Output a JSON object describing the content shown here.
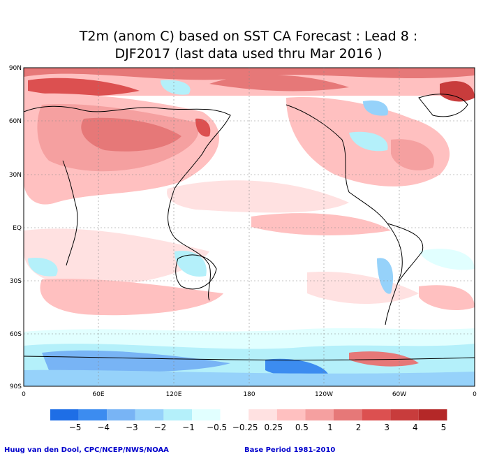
{
  "title_line1": "T2m (anom C) based on SST CA Forecast : Lead 8 :",
  "title_line2": "DJF2017 (last data used thru Mar 2016 )",
  "lat_labels": [
    "90N",
    "60N",
    "30N",
    "EQ",
    "30S",
    "60S",
    "90S"
  ],
  "lon_labels": [
    "0",
    "60E",
    "120E",
    "180",
    "120W",
    "60W",
    "0"
  ],
  "colorbar": {
    "colors": [
      "#1e6ee6",
      "#3c8cf0",
      "#78b4f5",
      "#96d2fa",
      "#b4f0fa",
      "#e1ffff",
      "#ffffff",
      "#ffe1e1",
      "#ffc0c0",
      "#f5a0a0",
      "#e67878",
      "#dc5050",
      "#c83c3c",
      "#b42828"
    ],
    "labels": [
      "−5",
      "−4",
      "−3",
      "−2",
      "−1",
      "−0.5",
      "−0.25",
      "0.25",
      "0.5",
      "1",
      "2",
      "3",
      "4",
      "5"
    ]
  },
  "credit_left": "Huug van den Dool, CPC/NCEP/NWS/NOAA",
  "credit_right": "Base Period 1981-2010"
}
